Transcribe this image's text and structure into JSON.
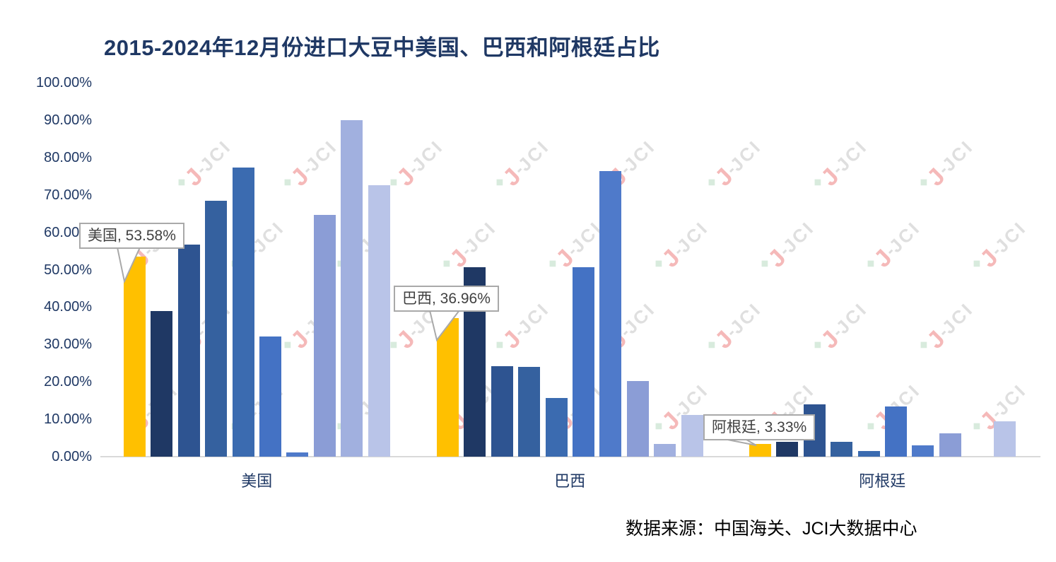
{
  "title": {
    "text": "2015-2024年12月份进口大豆中美国、巴西和阿根廷占比",
    "color": "#1F3864"
  },
  "y_axis": {
    "tick_labels": [
      "100.00%",
      "90.00%",
      "80.00%",
      "70.00%",
      "60.00%",
      "50.00%",
      "40.00%",
      "30.00%",
      "20.00%",
      "10.00%",
      "0.00%"
    ],
    "color": "#1F3864"
  },
  "x_axis": {
    "category_labels": [
      "美国",
      "巴西",
      "阿根廷"
    ],
    "color": "#1F3864",
    "axis_line_color": "#D9D9D9"
  },
  "callouts": [
    {
      "text": "美国, 53.58%",
      "category": "美国",
      "value": 53.58
    },
    {
      "text": "巴西, 36.96%",
      "category": "巴西",
      "value": 36.96
    },
    {
      "text": "阿根廷, 3.33%",
      "category": "阿根廷",
      "value": 3.33
    }
  ],
  "source_note": {
    "text": "数据来源：中国海关、JCI大数据中心",
    "color": "#000000"
  },
  "watermark": {
    "green_mark": "◆",
    "logo_letter": "J",
    "separator": "-",
    "text": "JCI"
  },
  "chart_data": {
    "type": "bar",
    "title": "2015-2024年12月份进口大豆中美国、巴西和阿根廷占比",
    "categories": [
      "美国",
      "巴西",
      "阿根廷"
    ],
    "bars_per_category": 10,
    "note": "每组10条柱对应标题所示2015-2024年12月份；图中未对单柱标注年份，每组第1条金色柱带气泡数据标签。",
    "series": [
      {
        "name": "bar-01-highlighted",
        "color": "#FFC000",
        "values": [
          53.58,
          36.96,
          3.33
        ],
        "data_label": true
      },
      {
        "name": "bar-02",
        "color": "#1F3864",
        "values": [
          38.9,
          50.6,
          4.0
        ]
      },
      {
        "name": "bar-03",
        "color": "#2E5491",
        "values": [
          56.7,
          24.2,
          13.9
        ]
      },
      {
        "name": "bar-04",
        "color": "#35619F",
        "values": [
          68.4,
          24.0,
          3.9
        ]
      },
      {
        "name": "bar-05",
        "color": "#3B6BB0",
        "values": [
          77.3,
          15.6,
          1.5
        ]
      },
      {
        "name": "bar-06",
        "color": "#4472C4",
        "values": [
          32.1,
          50.6,
          13.5
        ]
      },
      {
        "name": "bar-07",
        "color": "#4F7ACA",
        "values": [
          1.1,
          76.4,
          3.1
        ]
      },
      {
        "name": "bar-08",
        "color": "#8B9DD6",
        "values": [
          64.7,
          20.2,
          6.3
        ]
      },
      {
        "name": "bar-09",
        "color": "#A1B0DF",
        "values": [
          90.0,
          3.4,
          0.0
        ]
      },
      {
        "name": "bar-10",
        "color": "#B9C4E8",
        "values": [
          72.5,
          11.1,
          9.5
        ]
      }
    ],
    "ylim": [
      0,
      100
    ],
    "y_tick_step_percent": 10,
    "grid": false,
    "legend": "none"
  }
}
